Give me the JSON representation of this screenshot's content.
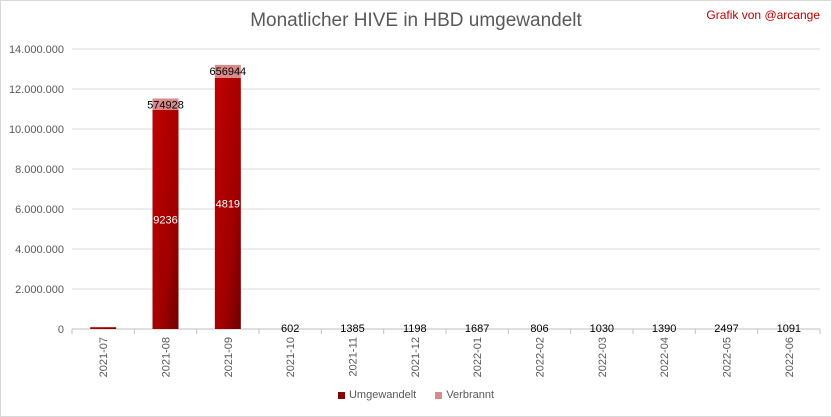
{
  "header": {
    "title": "Monatlicher HIVE in HBD umgewandelt",
    "credit": "Grafik von @arcange"
  },
  "colors": {
    "converted": "#8b0000",
    "converted_light": "#c00000",
    "burned": "#d98a8a",
    "gridline": "#d9d9d9",
    "axis_text": "#595959"
  },
  "chart_data": {
    "type": "bar",
    "stacked": true,
    "title": "Monatlicher HIVE in HBD umgewandelt",
    "xlabel": "",
    "ylabel": "",
    "ylim": [
      0,
      14000000
    ],
    "yticks": [
      0,
      2000000,
      4000000,
      6000000,
      8000000,
      10000000,
      12000000,
      14000000
    ],
    "ytick_labels": [
      "0",
      "2.000.000",
      "4.000.000",
      "6.000.000",
      "8.000.000",
      "10.000.000",
      "12.000.000",
      "14.000.000"
    ],
    "grid": true,
    "legend_position": "bottom",
    "categories": [
      "2021-07",
      "2021-08",
      "2021-09",
      "2021-10",
      "2021-11",
      "2021-12",
      "2022-01",
      "2022-02",
      "2022-03",
      "2022-04",
      "2022-05",
      "2022-06"
    ],
    "series": [
      {
        "name": "Umgewandelt",
        "values": [
          90000,
          10950000,
          12550000,
          0,
          0,
          0,
          0,
          0,
          0,
          0,
          0,
          0
        ],
        "labels": [
          "",
          "9236",
          "4819",
          "",
          "",
          "",
          "",
          "",
          "",
          "",
          "",
          ""
        ]
      },
      {
        "name": "Verbrannt",
        "values": [
          0,
          574928,
          656944,
          602,
          1385,
          1198,
          1687,
          806,
          1030,
          1390,
          2497,
          1091
        ],
        "labels": [
          "",
          "574928",
          "656944",
          "602",
          "1385",
          "1198",
          "1687",
          "806",
          "1030",
          "1390",
          "2497",
          "1091"
        ]
      }
    ]
  }
}
